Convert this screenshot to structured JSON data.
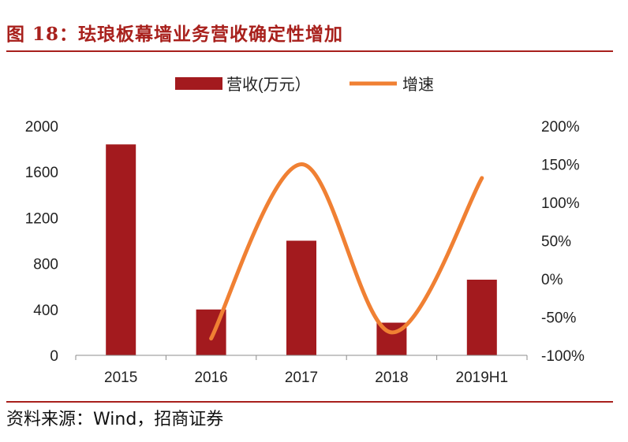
{
  "figure": {
    "title": "图 18：珐琅板幕墙业务营收确定性增加",
    "source": "资料来源：Wind，招商证券"
  },
  "colors": {
    "accent": "#a8201c",
    "bar": "#a31a1e",
    "line": "#f08033",
    "axis": "#8c8c8c"
  },
  "chart_data": {
    "type": "bar",
    "categories": [
      "2015",
      "2016",
      "2017",
      "2018",
      "2019H1"
    ],
    "series": [
      {
        "name": "营收(万元）",
        "type": "bar",
        "axis": "left",
        "values": [
          1840,
          400,
          1000,
          285,
          660
        ]
      },
      {
        "name": "增速",
        "type": "line",
        "axis": "right",
        "values": [
          null,
          -0.78,
          1.5,
          -0.7,
          1.32
        ]
      }
    ],
    "y_left": {
      "ylim": [
        0,
        2000
      ],
      "ticks": [
        "0",
        "400",
        "800",
        "1200",
        "1600",
        "2000"
      ],
      "tick_values": [
        0,
        400,
        800,
        1200,
        1600,
        2000
      ]
    },
    "y_right": {
      "ylim": [
        -1.0,
        2.0
      ],
      "ticks": [
        "-100%",
        "-50%",
        "0%",
        "50%",
        "100%",
        "150%",
        "200%"
      ],
      "tick_values": [
        -1.0,
        -0.5,
        0,
        0.5,
        1.0,
        1.5,
        2.0
      ]
    },
    "legend_placement": "top-center",
    "grid": false
  }
}
